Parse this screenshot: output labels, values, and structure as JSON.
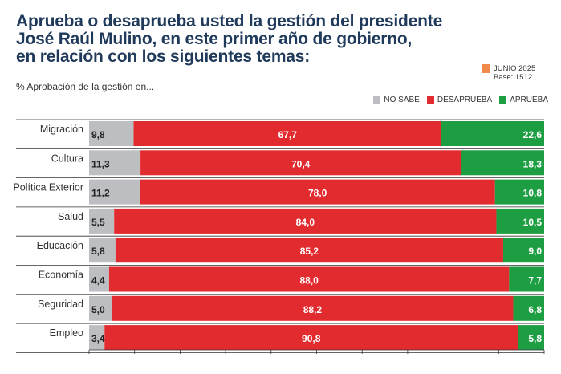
{
  "header": {
    "title_lines": [
      "Aprueba o desaprueba usted la gestión del presidente",
      "José Raúl Mulino, en este primer año de gobierno,",
      "en relación con los siguientes temas:"
    ],
    "subtitle": "% Aprobación de la gestión en...",
    "badge_date": "JUNIO 2025",
    "badge_base": "Base: 1512",
    "badge_color": "#f08a4b"
  },
  "chart_data": {
    "type": "bar",
    "orientation": "horizontal",
    "stacked": true,
    "categories": [
      "Migración",
      "Cultura",
      "Política Exterior",
      "Salud",
      "Educación",
      "Economía",
      "Seguridad",
      "Empleo"
    ],
    "series": [
      {
        "name": "NO SABE",
        "color": "#bdbec2",
        "values": [
          9.8,
          11.3,
          11.2,
          5.5,
          5.8,
          4.4,
          5.0,
          3.4
        ],
        "labels": [
          "9,8",
          "11,3",
          "11,2",
          "5,5",
          "5,8",
          "4,4",
          "5,0",
          "3,4"
        ]
      },
      {
        "name": "DESAPRUEBA",
        "color": "#e22b2f",
        "values": [
          67.7,
          70.4,
          78.0,
          84.0,
          85.2,
          88.0,
          88.2,
          90.8
        ],
        "labels": [
          "67,7",
          "70,4",
          "78,0",
          "84,0",
          "85,2",
          "88,0",
          "88,2",
          "90,8"
        ]
      },
      {
        "name": "APRUEBA",
        "color": "#1e9e43",
        "values": [
          22.6,
          18.3,
          10.8,
          10.5,
          9.0,
          7.7,
          6.8,
          5.8
        ],
        "labels": [
          "22,6",
          "18,3",
          "10,8",
          "10,5",
          "9,0",
          "7,7",
          "6,8",
          "5,8"
        ]
      }
    ],
    "xlim": [
      0,
      100
    ],
    "legend_position": "top-right"
  }
}
